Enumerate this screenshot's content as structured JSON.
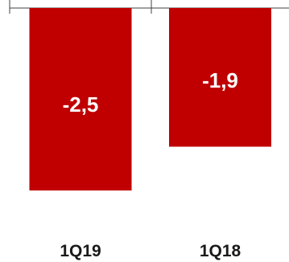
{
  "chart_data": {
    "type": "bar",
    "categories": [
      "1Q19",
      "1Q18"
    ],
    "values": [
      -2.5,
      -1.9
    ],
    "value_labels": [
      "-2,5",
      "-1,9"
    ],
    "ylim": [
      -2.5,
      0
    ],
    "grid": false,
    "legend": "none",
    "colors": {
      "bar": "#C00000",
      "value_text": "#FFFFFF",
      "axis": "#404040",
      "category_text": "#1A1A1A"
    }
  }
}
